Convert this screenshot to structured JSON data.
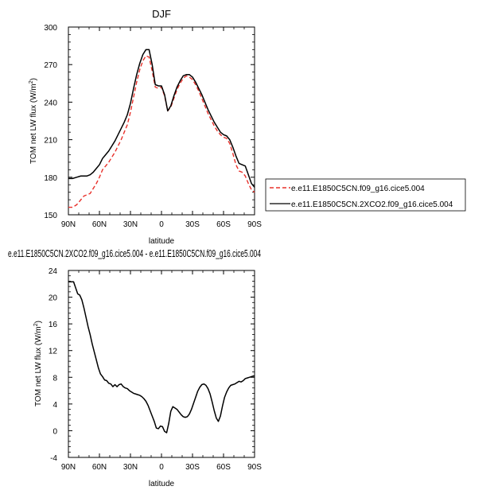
{
  "chart_data": [
    {
      "type": "line",
      "title": "DJF",
      "xlabel": "latitude",
      "ylabel": "TOM net LW flux (W/m²)",
      "ylabel_main": "TOM net LW flux (W/m",
      "ylabel_sup": "2",
      "ylabel_end": ")",
      "xlim": [
        90,
        -90
      ],
      "ylim": [
        150,
        300
      ],
      "xticks": [
        90,
        60,
        30,
        0,
        -30,
        -60,
        -90
      ],
      "xtick_labels": [
        "90N",
        "60N",
        "30N",
        "0",
        "30S",
        "60S",
        "90S"
      ],
      "yticks": [
        150,
        180,
        210,
        240,
        270,
        300
      ],
      "ytick_labels": [
        "150",
        "180",
        "210",
        "240",
        "270",
        "300"
      ],
      "legend_position": "right",
      "series": [
        {
          "name": "e.e11.E1850C5CN.f09_g16.cice5.004",
          "color": "#e8302a",
          "style": "dashed",
          "x": [
            90,
            86,
            82,
            78,
            75,
            72,
            69,
            66,
            63,
            60,
            57,
            54,
            51,
            48,
            45,
            42,
            39,
            36,
            33,
            30,
            27,
            24,
            21,
            18,
            15,
            12,
            9,
            6,
            3,
            0,
            -3,
            -6,
            -9,
            -12,
            -15,
            -18,
            -21,
            -24,
            -27,
            -30,
            -33,
            -36,
            -39,
            -42,
            -45,
            -48,
            -51,
            -54,
            -57,
            -60,
            -63,
            -66,
            -69,
            -72,
            -75,
            -78,
            -81,
            -84,
            -87,
            -90
          ],
          "y": [
            156,
            156,
            158,
            162,
            165,
            166,
            167,
            171,
            175,
            180,
            186,
            189,
            192,
            196,
            200,
            205,
            210,
            216,
            222,
            232,
            244,
            256,
            266,
            273,
            277,
            276,
            265,
            252,
            251,
            252,
            245,
            233,
            236,
            243,
            250,
            255,
            259,
            261,
            260,
            258,
            254,
            249,
            243,
            237,
            231,
            226,
            221,
            217,
            214,
            212,
            211,
            207,
            199,
            190,
            185,
            184,
            181,
            175,
            170,
            168
          ]
        },
        {
          "name": "e.e11.E1850C5CN.2XCO2.f09_g16.cice5.004",
          "color": "#000000",
          "style": "solid",
          "x": [
            90,
            86,
            82,
            78,
            75,
            72,
            69,
            66,
            63,
            60,
            57,
            54,
            51,
            48,
            45,
            42,
            39,
            36,
            33,
            30,
            27,
            24,
            21,
            18,
            15,
            12,
            9,
            6,
            3,
            0,
            -3,
            -6,
            -9,
            -12,
            -15,
            -18,
            -21,
            -24,
            -27,
            -30,
            -33,
            -36,
            -39,
            -42,
            -45,
            -48,
            -51,
            -54,
            -57,
            -60,
            -63,
            -66,
            -69,
            -72,
            -75,
            -78,
            -81,
            -84,
            -87,
            -90
          ],
          "y": [
            179,
            179,
            180,
            181,
            181,
            181,
            182,
            184,
            187,
            190,
            195,
            198,
            201,
            205,
            209,
            214,
            219,
            224,
            230,
            239,
            251,
            262,
            271,
            278,
            282,
            282,
            270,
            254,
            253,
            253,
            246,
            233,
            237,
            245,
            252,
            257,
            261,
            262,
            262,
            260,
            256,
            251,
            246,
            240,
            234,
            229,
            224,
            220,
            216,
            214,
            213,
            210,
            204,
            197,
            191,
            190,
            189,
            182,
            175,
            172
          ]
        }
      ]
    },
    {
      "type": "line",
      "title": "e.e11.E1850C5CN.2XCO2.f09_g16.cice5.004 - e.e11.E1850C5CN.f09_g16.cice5.004",
      "xlabel": "latitude",
      "ylabel": "TOM net LW flux (W/m²)",
      "ylabel_main": "TOM net LW flux (W/m",
      "ylabel_sup": "2",
      "ylabel_end": ")",
      "xlim": [
        90,
        -90
      ],
      "ylim": [
        -4,
        24
      ],
      "xticks": [
        90,
        60,
        30,
        0,
        -30,
        -60,
        -90
      ],
      "xtick_labels": [
        "90N",
        "60N",
        "30N",
        "0",
        "30S",
        "60S",
        "90S"
      ],
      "yticks": [
        -4,
        0,
        4,
        8,
        12,
        16,
        20,
        24
      ],
      "ytick_labels": [
        "-4",
        "0",
        "4",
        "8",
        "12",
        "16",
        "20",
        "24"
      ],
      "series": [
        {
          "color": "#000000",
          "style": "solid",
          "x": [
            90,
            87,
            85,
            83,
            81,
            79,
            77,
            75,
            73,
            71,
            69,
            67,
            65,
            63,
            61,
            59,
            57,
            55,
            53,
            51,
            49,
            47,
            45,
            43,
            41,
            39,
            37,
            35,
            33,
            31,
            29,
            27,
            25,
            23,
            21,
            19,
            17,
            15,
            13,
            11,
            9,
            7,
            5,
            3,
            1,
            -1,
            -3,
            -5,
            -7,
            -9,
            -11,
            -13,
            -15,
            -17,
            -19,
            -21,
            -23,
            -25,
            -27,
            -29,
            -31,
            -33,
            -35,
            -37,
            -39,
            -41,
            -43,
            -45,
            -47,
            -49,
            -51,
            -53,
            -55,
            -57,
            -59,
            -61,
            -63,
            -65,
            -67,
            -69,
            -71,
            -73,
            -75,
            -77,
            -79,
            -81,
            -83,
            -85,
            -87,
            -89,
            -90
          ],
          "y": [
            22.3,
            22.3,
            22.3,
            21.4,
            20.5,
            20.3,
            19.6,
            18.4,
            17.0,
            15.6,
            14.4,
            13.0,
            11.8,
            10.6,
            9.4,
            8.5,
            8.1,
            7.6,
            7.5,
            7.1,
            7.0,
            6.6,
            6.9,
            6.6,
            6.9,
            7.0,
            6.6,
            6.4,
            6.3,
            6.0,
            5.8,
            5.6,
            5.5,
            5.4,
            5.3,
            5.1,
            4.8,
            4.4,
            3.8,
            3.0,
            2.2,
            1.4,
            0.4,
            0.3,
            0.7,
            0.6,
            -0.1,
            -0.3,
            1.1,
            2.9,
            3.6,
            3.4,
            3.2,
            2.8,
            2.4,
            2.1,
            2.0,
            2.1,
            2.5,
            3.2,
            4.1,
            5.0,
            5.9,
            6.5,
            6.9,
            7.0,
            6.8,
            6.3,
            5.5,
            4.3,
            3.0,
            1.9,
            1.4,
            2.2,
            3.7,
            5.0,
            5.8,
            6.4,
            6.8,
            6.9,
            7.0,
            7.2,
            7.4,
            7.3,
            7.5,
            7.8,
            7.9,
            8.0,
            8.1,
            8.2,
            8.2
          ]
        }
      ]
    }
  ]
}
